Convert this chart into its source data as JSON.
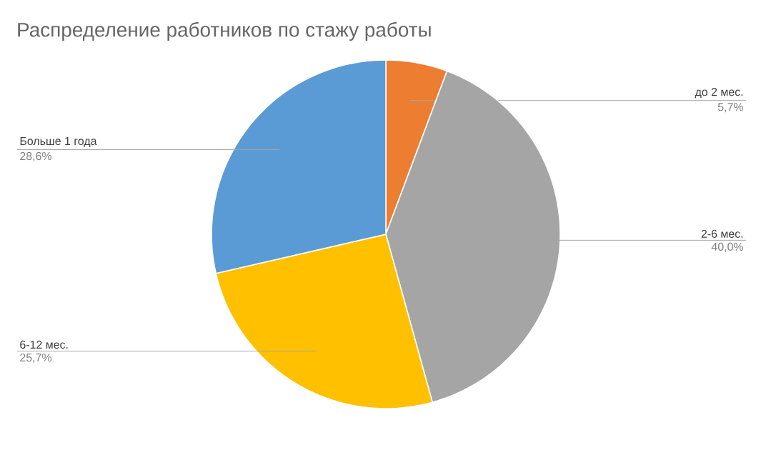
{
  "chart_data": {
    "type": "pie",
    "title": "Распределение работников по стажу работы",
    "categories": [
      "до 2 мес.",
      "2-6 мес.",
      "6-12 мес.",
      "Больше 1 года"
    ],
    "values": [
      5.7,
      40.0,
      25.7,
      28.6
    ],
    "value_labels": [
      "5,7%",
      "40,0%",
      "25,7%",
      "28,6%"
    ],
    "colors": [
      "#ed7d31",
      "#a5a5a5",
      "#ffc000",
      "#5b9bd5"
    ]
  }
}
